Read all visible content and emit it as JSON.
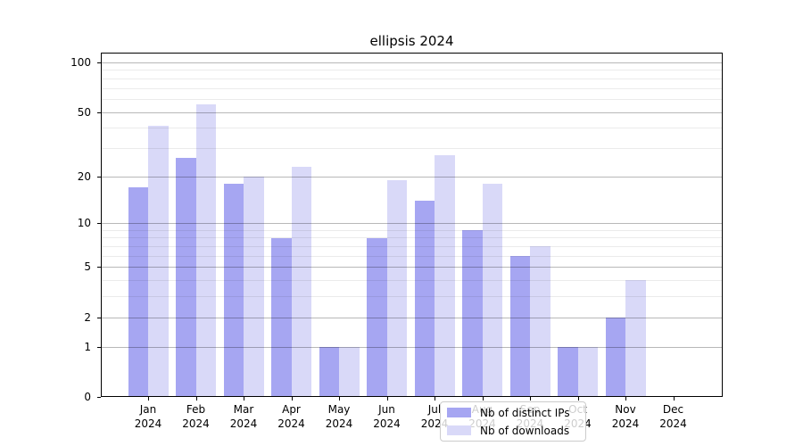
{
  "figure": {
    "title": "ellipsis 2024"
  },
  "chart_data": {
    "type": "bar",
    "title": "ellipsis 2024",
    "categories": [
      "Jan 2024",
      "Feb 2024",
      "Mar 2024",
      "Apr 2024",
      "May 2024",
      "Jun 2024",
      "Jul 2024",
      "Aug 2024",
      "Sep 2024",
      "Oct 2024",
      "Nov 2024",
      "Dec 2024"
    ],
    "x_tick_line1": [
      "Jan",
      "Feb",
      "Mar",
      "Apr",
      "May",
      "Jun",
      "Jul",
      "Aug",
      "Sep",
      "Oct",
      "Nov",
      "Dec"
    ],
    "x_tick_line2": [
      "2024",
      "2024",
      "2024",
      "2024",
      "2024",
      "2024",
      "2024",
      "2024",
      "2024",
      "2024",
      "2024",
      "2024"
    ],
    "series": [
      {
        "name": "Nb of distinct IPs",
        "color": "#a6a6f2",
        "values": [
          17,
          26,
          18,
          8,
          1,
          8,
          14,
          9,
          6,
          1,
          2,
          0
        ]
      },
      {
        "name": "Nb of downloads",
        "color": "#d9d9f8",
        "values": [
          41,
          56,
          20,
          23,
          1,
          19,
          27,
          18,
          7,
          1,
          4,
          0
        ]
      }
    ],
    "xlabel": "",
    "ylabel": "",
    "yscale": "log1p",
    "ylim": [
      0,
      114
    ],
    "yticks": [
      0,
      1,
      2,
      5,
      10,
      20,
      50,
      100
    ],
    "minor_gridlines": [
      3,
      4,
      6,
      7,
      8,
      9,
      30,
      40,
      60,
      70,
      80,
      90
    ],
    "grid": "on",
    "legend_position": "lower center (inside plot)",
    "colors": {
      "bar_dark": "#a6a6f2",
      "bar_light": "#d9d9f8",
      "major_grid": "#b8b8b8",
      "minor_grid": "#ebebeb",
      "spine": "#000000",
      "legend_border": "#cccccc"
    }
  }
}
